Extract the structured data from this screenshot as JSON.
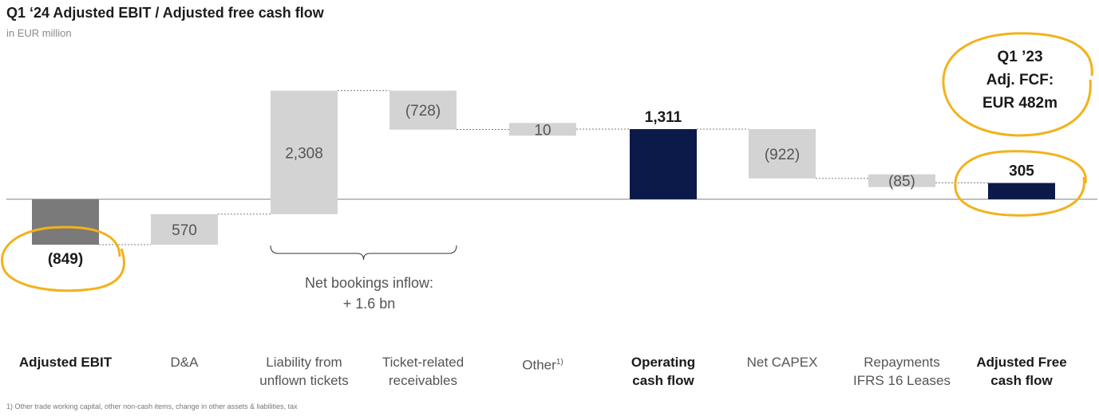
{
  "title": "Q1 ‘24 Adjusted EBIT / Adjusted free cash flow",
  "subtitle": "in EUR million",
  "footnote": "1) Other trade working capital, other non-cash items, change in other assets & liabilities, tax",
  "colors": {
    "total_dark": "#0b1a48",
    "ebit_gray": "#7a7a7a",
    "step_light": "#d3d3d3",
    "highlight": "#f2b21b"
  },
  "chart_data": {
    "type": "waterfall",
    "unit": "EUR million",
    "bars": [
      {
        "category": "Adjusted EBIT",
        "value": -849,
        "label": "(849)",
        "kind": "start"
      },
      {
        "category": "D&A",
        "value": 570,
        "label": "570",
        "kind": "step"
      },
      {
        "category": "Liability from unflown tickets",
        "value": 2308,
        "label": "2,308",
        "kind": "step"
      },
      {
        "category": "Ticket-related receivables",
        "value": -728,
        "label": "(728)",
        "kind": "step"
      },
      {
        "category": "Other1)",
        "value": 10,
        "label": "10",
        "kind": "step"
      },
      {
        "category": "Operating cash flow",
        "value": 1311,
        "label": "1,311",
        "kind": "total"
      },
      {
        "category": "Net CAPEX",
        "value": -922,
        "label": "(922)",
        "kind": "step"
      },
      {
        "category": "Repayments IFRS 16 Leases",
        "value": -85,
        "label": "(85)",
        "kind": "step"
      },
      {
        "category": "Adjusted Free cash flow",
        "value": 305,
        "label": "305",
        "kind": "total"
      }
    ],
    "category_lines": [
      [
        "Adjusted EBIT"
      ],
      [
        "D&A"
      ],
      [
        "Liability from",
        "unflown tickets"
      ],
      [
        "Ticket-related",
        "receivables"
      ],
      [
        "Other",
        "1)"
      ],
      [
        "Operating",
        "cash flow"
      ],
      [
        "Net CAPEX"
      ],
      [
        "Repayments",
        "IFRS 16 Leases"
      ],
      [
        "Adjusted Free",
        "cash flow"
      ]
    ],
    "bracket_annotation": {
      "lines": [
        "Net bookings inflow:",
        "+ 1.6 bn"
      ],
      "spans": [
        2,
        3
      ]
    },
    "callout": {
      "lines": [
        "Q1 ’23",
        "Adj. FCF:",
        "EUR 482m"
      ]
    },
    "highlighted": [
      0,
      8
    ]
  }
}
